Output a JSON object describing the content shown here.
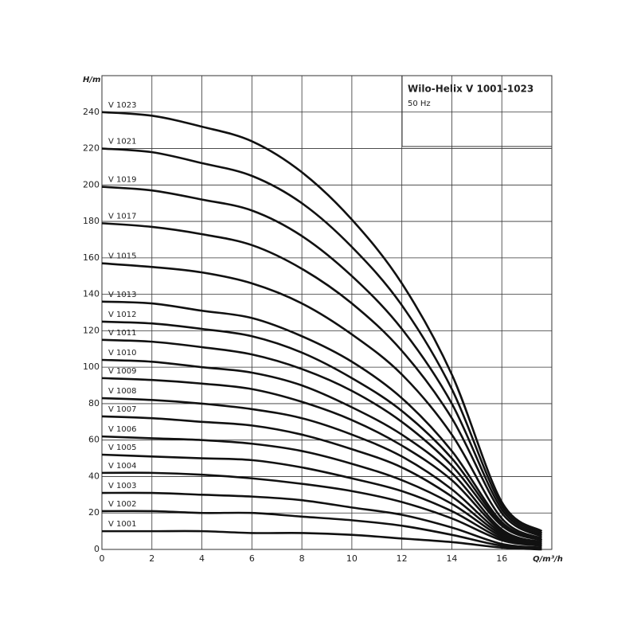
{
  "chart_data": {
    "type": "line",
    "title": "Wilo-Helix V 1001-1023",
    "subtitle": "50 Hz",
    "x_label": "Q/m³/h",
    "y_label": "H/m",
    "xlim": [
      0,
      18
    ],
    "xticks": [
      0,
      2,
      4,
      6,
      8,
      10,
      12,
      14,
      16
    ],
    "ylim": [
      0,
      260
    ],
    "yticks": [
      0,
      20,
      40,
      60,
      80,
      100,
      120,
      140,
      160,
      180,
      200,
      220,
      240
    ],
    "grid": true,
    "x": [
      0,
      2,
      4,
      6,
      8,
      10,
      12,
      14,
      16,
      17.6
    ],
    "series": [
      {
        "name": "V 1023",
        "color": "#111111",
        "values": [
          240,
          238,
          232,
          224,
          207,
          181,
          146,
          96,
          26,
          10
        ]
      },
      {
        "name": "V 1021",
        "color": "#111111",
        "values": [
          220,
          218,
          212,
          205,
          190,
          166,
          134,
          88,
          24,
          9
        ]
      },
      {
        "name": "V 1019",
        "color": "#111111",
        "values": [
          199,
          197,
          192,
          186,
          172,
          150,
          121,
          80,
          22,
          8
        ]
      },
      {
        "name": "V 1017",
        "color": "#111111",
        "values": [
          179,
          177,
          173,
          167,
          154,
          135,
          109,
          72,
          20,
          7
        ]
      },
      {
        "name": "V 1015",
        "color": "#111111",
        "values": [
          157,
          155,
          152,
          146,
          135,
          118,
          96,
          63,
          17,
          6
        ]
      },
      {
        "name": "V 1013",
        "color": "#111111",
        "values": [
          136,
          135,
          131,
          127,
          117,
          103,
          83,
          54,
          15,
          5
        ]
      },
      {
        "name": "V 1012",
        "color": "#111111",
        "values": [
          125,
          124,
          121,
          117,
          108,
          94,
          76,
          50,
          14,
          5
        ]
      },
      {
        "name": "V 1011",
        "color": "#111111",
        "values": [
          115,
          114,
          111,
          107,
          99,
          87,
          70,
          46,
          13,
          5
        ]
      },
      {
        "name": "V 1010",
        "color": "#111111",
        "values": [
          104,
          103,
          100,
          97,
          90,
          78,
          63,
          42,
          11,
          4
        ]
      },
      {
        "name": "V 1009",
        "color": "#111111",
        "values": [
          94,
          93,
          91,
          88,
          81,
          71,
          57,
          38,
          10,
          4
        ]
      },
      {
        "name": "V 1008",
        "color": "#111111",
        "values": [
          83,
          82,
          80,
          77,
          72,
          63,
          51,
          33,
          9,
          3
        ]
      },
      {
        "name": "V 1007",
        "color": "#111111",
        "values": [
          73,
          72,
          70,
          68,
          63,
          55,
          45,
          29,
          8,
          3
        ]
      },
      {
        "name": "V 1006",
        "color": "#111111",
        "values": [
          62,
          61,
          60,
          58,
          54,
          47,
          38,
          25,
          7,
          2
        ]
      },
      {
        "name": "V 1005",
        "color": "#111111",
        "values": [
          52,
          51,
          50,
          49,
          45,
          39,
          32,
          21,
          6,
          2
        ]
      },
      {
        "name": "V 1004",
        "color": "#111111",
        "values": [
          42,
          42,
          41,
          39,
          36,
          32,
          26,
          17,
          5,
          2
        ]
      },
      {
        "name": "V 1003",
        "color": "#111111",
        "values": [
          31,
          31,
          30,
          29,
          27,
          23,
          19,
          12,
          3,
          1
        ]
      },
      {
        "name": "V 1002",
        "color": "#111111",
        "values": [
          21,
          21,
          20,
          20,
          18,
          16,
          13,
          8,
          2,
          1
        ]
      },
      {
        "name": "V 1001",
        "color": "#111111",
        "values": [
          10,
          10,
          10,
          9,
          9,
          8,
          6,
          4,
          1,
          0
        ]
      }
    ]
  }
}
